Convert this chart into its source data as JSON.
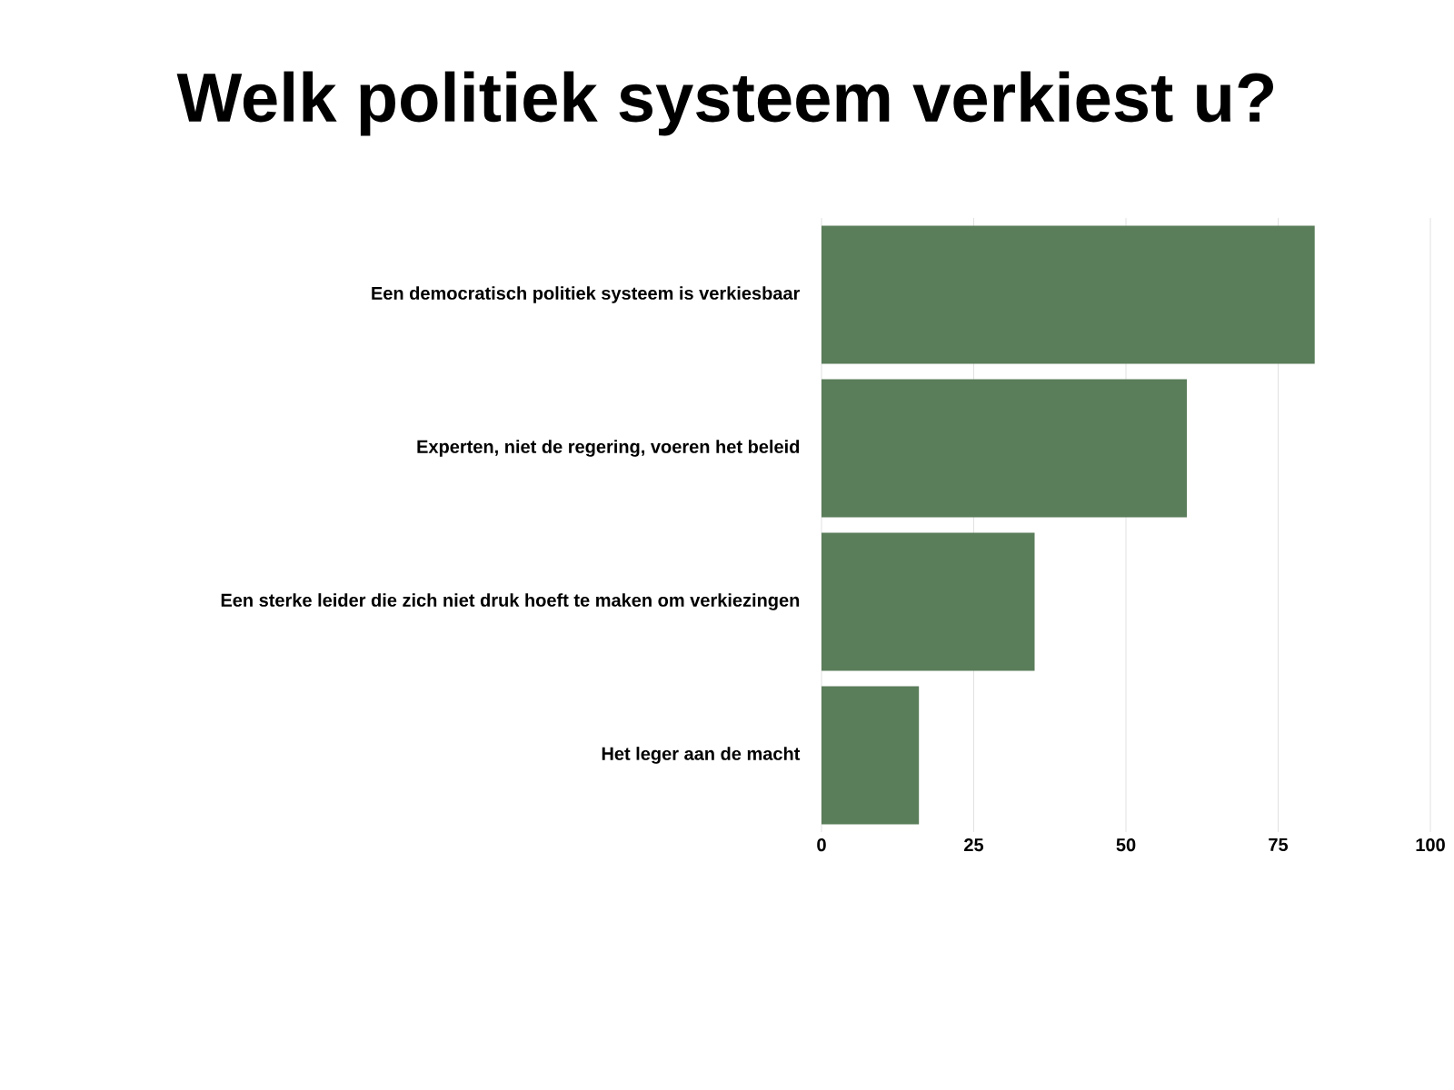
{
  "chart_data": {
    "type": "bar",
    "title": "Welk politiek systeem verkiest u?",
    "categories": [
      "Een democratisch politiek systeem is verkiesbaar",
      "Experten, niet de regering, voeren het beleid",
      "Een sterke leider die zich niet druk hoeft te maken om verkiezingen",
      "Het leger aan de macht"
    ],
    "values": [
      81,
      60,
      35,
      16
    ],
    "color": "#5a7d5a",
    "orientation": "horizontal",
    "xlim": [
      0,
      100
    ],
    "xticks": [
      0,
      25,
      50,
      75,
      100
    ],
    "grid": "x"
  }
}
